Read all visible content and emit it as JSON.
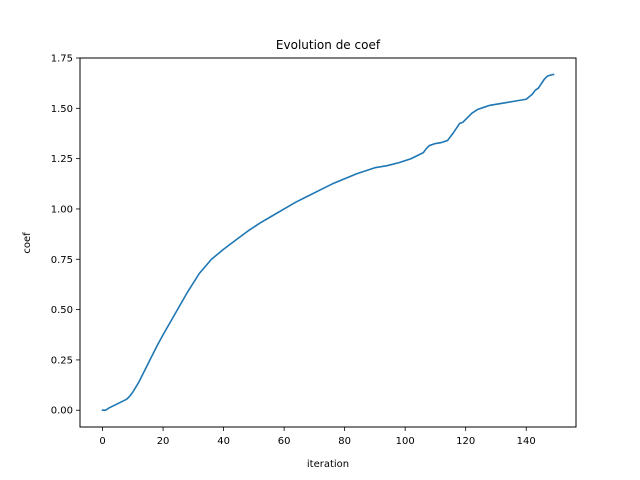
{
  "chart_data": {
    "type": "line",
    "title": "Evolution de coef",
    "xlabel": "iteration",
    "ylabel": "coef",
    "xlim": [
      -7.45,
      156.45
    ],
    "ylim": [
      -0.0833,
      1.75
    ],
    "xticks": [
      0,
      20,
      40,
      60,
      80,
      100,
      120,
      140
    ],
    "xtick_labels": [
      "0",
      "20",
      "40",
      "60",
      "80",
      "100",
      "120",
      "140"
    ],
    "yticks": [
      0.0,
      0.25,
      0.5,
      0.75,
      1.0,
      1.25,
      1.5,
      1.75
    ],
    "ytick_labels": [
      "0.00",
      "0.25",
      "0.50",
      "0.75",
      "1.00",
      "1.25",
      "1.50",
      "1.75"
    ],
    "grid": false,
    "legend": "none",
    "series": [
      {
        "color": "#1f77b4",
        "x": [
          0,
          1,
          2,
          4,
          6,
          8,
          9,
          10,
          12,
          14,
          16,
          18,
          20,
          24,
          28,
          32,
          36,
          40,
          44,
          48,
          52,
          56,
          60,
          64,
          68,
          72,
          76,
          80,
          84,
          88,
          90,
          94,
          98,
          102,
          104,
          106,
          107,
          108,
          110,
          112,
          113,
          114,
          116,
          118,
          119,
          120,
          122,
          124,
          126,
          128,
          130,
          132,
          134,
          136,
          138,
          140,
          142,
          143,
          144,
          146,
          147,
          148,
          149
        ],
        "y": [
          0.0,
          0.0,
          0.01,
          0.025,
          0.04,
          0.055,
          0.07,
          0.09,
          0.14,
          0.2,
          0.26,
          0.32,
          0.375,
          0.48,
          0.585,
          0.68,
          0.75,
          0.8,
          0.845,
          0.89,
          0.93,
          0.965,
          1.0,
          1.035,
          1.065,
          1.095,
          1.125,
          1.15,
          1.175,
          1.195,
          1.205,
          1.215,
          1.23,
          1.25,
          1.265,
          1.28,
          1.3,
          1.315,
          1.325,
          1.33,
          1.335,
          1.34,
          1.38,
          1.425,
          1.43,
          1.445,
          1.475,
          1.495,
          1.505,
          1.515,
          1.52,
          1.525,
          1.53,
          1.535,
          1.54,
          1.545,
          1.57,
          1.59,
          1.6,
          1.645,
          1.66,
          1.665,
          1.668
        ]
      }
    ]
  }
}
